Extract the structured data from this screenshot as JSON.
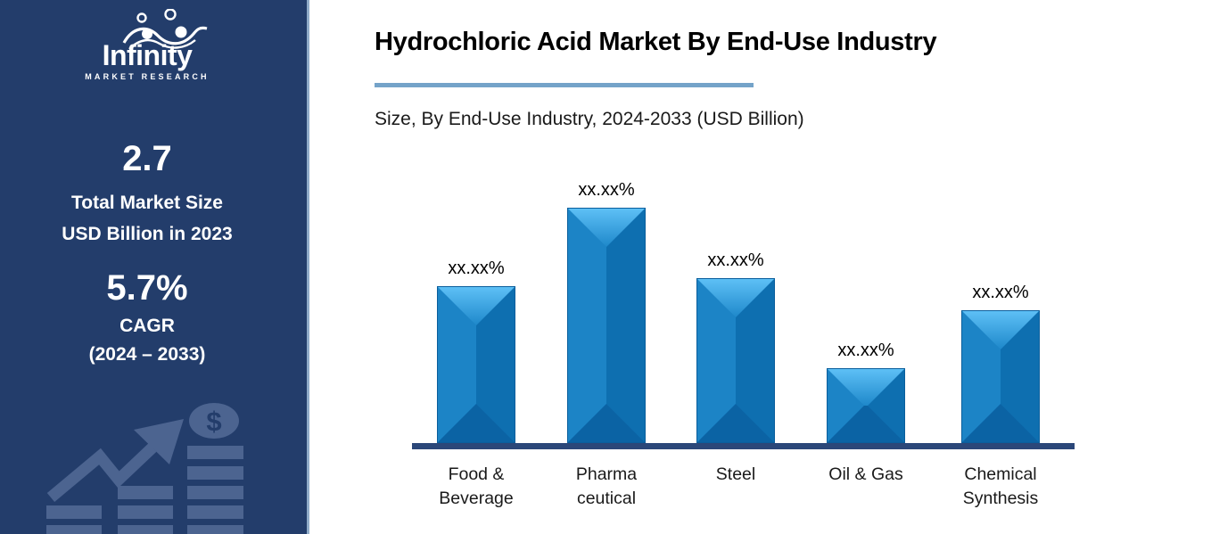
{
  "sidebar": {
    "logo": {
      "brand": "Infinity",
      "tagline": "MARKET RESEARCH"
    },
    "market_size": {
      "value": "2.7",
      "label_line1": "Total Market Size",
      "label_line2": "USD Billion in 2023"
    },
    "cagr": {
      "value": "5.7%",
      "label_line1": "CAGR",
      "label_line2": "(2024 – 2033)"
    },
    "decoration": {
      "dollar_sign": "$"
    }
  },
  "chart_data": {
    "type": "bar",
    "title": "Hydrochloric Acid Market By End-Use Industry",
    "subtitle": "Size, By End-Use Industry, 2024-2033 (USD Billion)",
    "categories": [
      "Food & Beverage",
      "Pharmaceutical",
      "Steel",
      "Oil & Gas",
      "Chemical Synthesis"
    ],
    "category_display_lines": [
      [
        "Food &",
        "Beverage"
      ],
      [
        "Pharma",
        "ceutical"
      ],
      [
        "Steel"
      ],
      [
        "Oil & Gas"
      ],
      [
        "Chemical",
        "Synthesis"
      ]
    ],
    "value_labels": [
      "xx.xx%",
      "xx.xx%",
      "xx.xx%",
      "xx.xx%",
      "xx.xx%"
    ],
    "values_masked": true,
    "relative_heights": [
      0.667,
      1.0,
      0.701,
      0.318,
      0.564
    ],
    "xlabel": "",
    "ylabel": "",
    "grid": false,
    "legend": false
  },
  "colors": {
    "sidebar_bg": "#233D6B",
    "sidebar_text": "#FFFFFF",
    "sidebar_graphic": "#4C6490",
    "divider": "#8FABC9",
    "title_underline": "#74A3C9",
    "title_text": "#000000",
    "subtitle_text": "#1A1A1A",
    "axis_line": "#2B4779",
    "bar_body": "#1377BD",
    "bar_top_light": "#5FC1F7",
    "bar_top_dark": "#1E88CA",
    "bar_left": "#1C84C6",
    "bar_right": "#0E6FB0",
    "bar_bottom": "#0B63A4",
    "bar_outline": "#0A5E9C",
    "value_label_text": "#000000",
    "category_label_text": "#1A1A1A"
  }
}
